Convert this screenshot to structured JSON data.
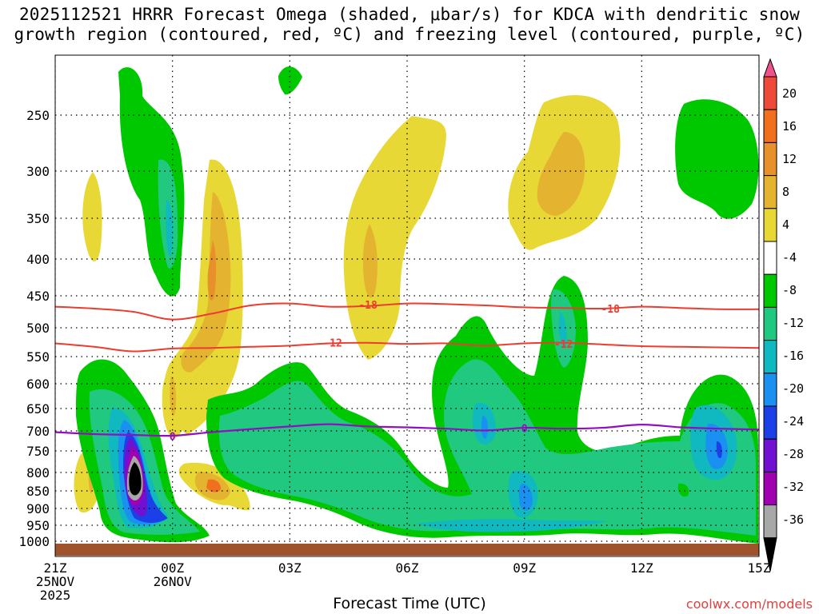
{
  "title": {
    "line1": "2025112521 HRRR Forecast Omega (shaded, μbar/s) for KDCA with dendritic snow",
    "line2": "growth region (contoured, red, ºC) and freezing level (contoured, purple, ºC)"
  },
  "xlabel": "Forecast Time (UTC)",
  "credit": "coolwx.com/models",
  "chart_data": {
    "type": "time-height cross section",
    "x_ticks": [
      {
        "hour": 0,
        "line1": "21Z",
        "line2": "25NOV",
        "line3": "2025"
      },
      {
        "hour": 3,
        "line1": "00Z",
        "line2": "26NOV",
        "line3": ""
      },
      {
        "hour": 6,
        "line1": "03Z",
        "line2": "",
        "line3": ""
      },
      {
        "hour": 9,
        "line1": "06Z",
        "line2": "",
        "line3": ""
      },
      {
        "hour": 12,
        "line1": "09Z",
        "line2": "",
        "line3": ""
      },
      {
        "hour": 15,
        "line1": "12Z",
        "line2": "",
        "line3": ""
      },
      {
        "hour": 18,
        "line1": "15Z",
        "line2": "",
        "line3": ""
      }
    ],
    "y_ticks": [
      250,
      300,
      350,
      400,
      450,
      500,
      550,
      600,
      650,
      700,
      750,
      800,
      850,
      900,
      950,
      1000
    ],
    "y_range_hpa": [
      200,
      1010
    ],
    "x_range_hours": [
      0,
      18
    ],
    "colorbar": {
      "labels": [
        "20",
        "16",
        "12",
        "8",
        "4",
        "-4",
        "-8",
        "-12",
        "-16",
        "-20",
        "-24",
        "-28",
        "-32",
        "-36"
      ],
      "colors": [
        "#f0508c",
        "#ee4a3a",
        "#f0701e",
        "#e8902a",
        "#e4b430",
        "#e8d836",
        "#ffffff",
        "#00c800",
        "#20c880",
        "#10b8c0",
        "#1a90f0",
        "#1c40e8",
        "#7010d0",
        "#a000b0",
        "#a8a8a8",
        "#000000"
      ]
    },
    "dendritic_growth_contours": [
      {
        "label": "-18",
        "points": [
          [
            0,
            467
          ],
          [
            1,
            470
          ],
          [
            2,
            475
          ],
          [
            3,
            487
          ],
          [
            4,
            478
          ],
          [
            5,
            465
          ],
          [
            6,
            462
          ],
          [
            7,
            467
          ],
          [
            8,
            466
          ],
          [
            9,
            462
          ],
          [
            10,
            463
          ],
          [
            11,
            465
          ],
          [
            12,
            468
          ],
          [
            13,
            469
          ],
          [
            14,
            470
          ],
          [
            15,
            467
          ],
          [
            16,
            469
          ],
          [
            17,
            471
          ],
          [
            18,
            471
          ]
        ],
        "label_positions": [
          [
            8.0,
            464
          ],
          [
            14.2,
            470
          ]
        ]
      },
      {
        "label": "-12",
        "points": [
          [
            0,
            527
          ],
          [
            1,
            533
          ],
          [
            2,
            541
          ],
          [
            3,
            536
          ],
          [
            4,
            535
          ],
          [
            5,
            533
          ],
          [
            6,
            531
          ],
          [
            7,
            527
          ],
          [
            8,
            526
          ],
          [
            9,
            528
          ],
          [
            10,
            527
          ],
          [
            11,
            531
          ],
          [
            12,
            527
          ],
          [
            13,
            526
          ],
          [
            14,
            529
          ],
          [
            15,
            532
          ],
          [
            16,
            533
          ],
          [
            17,
            534
          ],
          [
            18,
            535
          ]
        ],
        "label_positions": [
          [
            7.1,
            526
          ],
          [
            13.0,
            528
          ]
        ]
      }
    ],
    "freezing_level_contour": {
      "label": "0",
      "points": [
        [
          0,
          703
        ],
        [
          1,
          708
        ],
        [
          2,
          710
        ],
        [
          3,
          712
        ],
        [
          4,
          703
        ],
        [
          5,
          696
        ],
        [
          6,
          690
        ],
        [
          7,
          685
        ],
        [
          8,
          690
        ],
        [
          9,
          692
        ],
        [
          10,
          695
        ],
        [
          11,
          699
        ],
        [
          12,
          693
        ],
        [
          13,
          695
        ],
        [
          14,
          693
        ],
        [
          15,
          686
        ],
        [
          16,
          692
        ],
        [
          17,
          695
        ],
        [
          18,
          697
        ]
      ],
      "label_positions": [
        [
          3.0,
          713
        ],
        [
          12.0,
          694
        ]
      ]
    },
    "omega_features": [
      {
        "sign": "negative",
        "peak": -36,
        "hour": 2.0,
        "hpa": 825
      },
      {
        "sign": "positive",
        "peak": 12,
        "hour": 3.9,
        "hpa": 840
      },
      {
        "sign": "positive",
        "peak": 8,
        "hour": 3.4,
        "hpa": 420
      },
      {
        "sign": "positive",
        "peak": 8,
        "hour": 7.9,
        "hpa": 420
      },
      {
        "sign": "positive",
        "peak": 8,
        "hour": 13.2,
        "hpa": 300
      },
      {
        "sign": "negative",
        "peak": -12,
        "hour": 2.7,
        "hpa": 360
      },
      {
        "sign": "negative",
        "peak": -12,
        "hour": 13.0,
        "hpa": 490
      },
      {
        "sign": "negative",
        "peak": -16,
        "hour": 12.1,
        "hpa": 880
      },
      {
        "sign": "negative",
        "peak": -24,
        "hour": 16.8,
        "hpa": 750
      },
      {
        "sign": "negative",
        "peak": -8,
        "hour": 17.0,
        "hpa": 290
      }
    ]
  }
}
